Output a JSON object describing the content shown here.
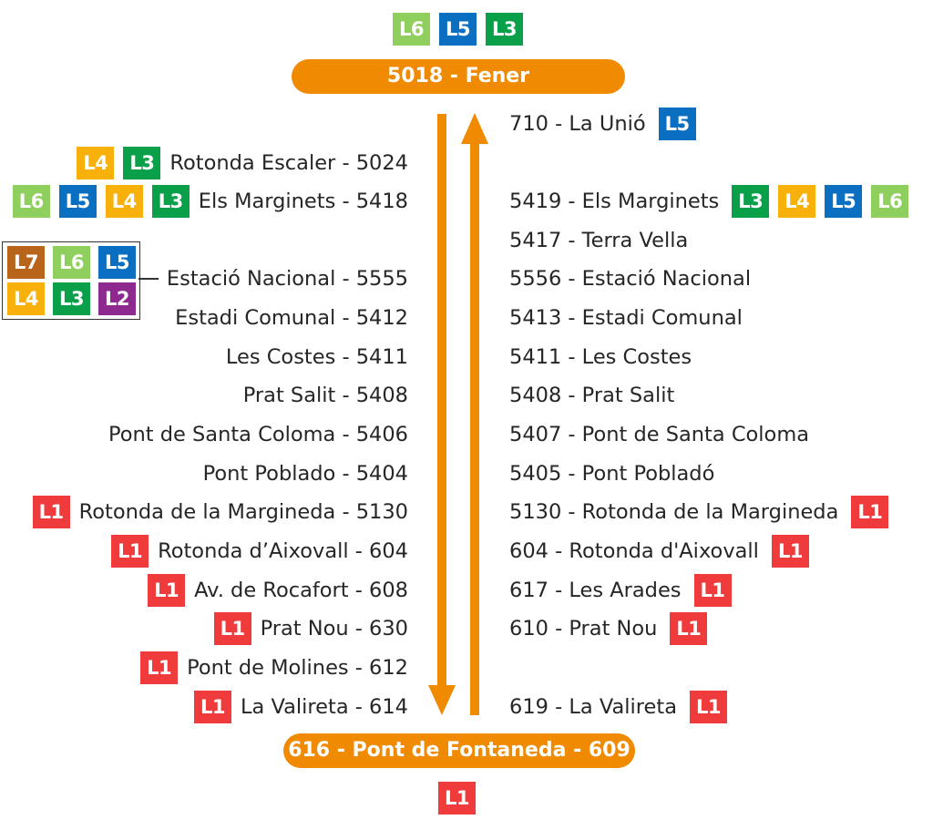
{
  "line_colors": {
    "L1": "#ef3b3b",
    "L2": "#8e2a8f",
    "L3": "#0aa04a",
    "L4": "#f7b10a",
    "L5": "#0a6fc0",
    "L6": "#8ecf5e",
    "L7": "#b8641a"
  },
  "arrow_color": "#f08a00",
  "top_terminal": {
    "label": "5018 - Fener",
    "lines": [
      "L6",
      "L5",
      "L3"
    ]
  },
  "bottom_terminal": {
    "label": "616 - Pont de Fontaneda - 609",
    "lines": [
      "L1"
    ]
  },
  "left_stops": [
    {
      "label": "Rotonda Escaler - 5024",
      "lines": [
        "L4",
        "L3"
      ]
    },
    {
      "label": "Els Marginets - 5418",
      "lines": [
        "L6",
        "L5",
        "L4",
        "L3"
      ]
    },
    {
      "label": "Estació Nacional - 5555",
      "lines": [
        "L7",
        "L6",
        "L5",
        "L4",
        "L3",
        "L2"
      ]
    },
    {
      "label": "Estadi Comunal - 5412",
      "lines": []
    },
    {
      "label": "Les Costes - 5411",
      "lines": []
    },
    {
      "label": "Prat Salit - 5408",
      "lines": []
    },
    {
      "label": "Pont de Santa Coloma - 5406",
      "lines": []
    },
    {
      "label": "Pont Poblado - 5404",
      "lines": []
    },
    {
      "label": "Rotonda de la Margineda - 5130",
      "lines": [
        "L1"
      ]
    },
    {
      "label": "Rotonda d’Aixovall - 604",
      "lines": [
        "L1"
      ]
    },
    {
      "label": "Av. de Rocafort - 608",
      "lines": [
        "L1"
      ]
    },
    {
      "label": "Prat Nou - 630",
      "lines": [
        "L1"
      ]
    },
    {
      "label": "Pont de Molines - 612",
      "lines": [
        "L1"
      ]
    },
    {
      "label": "La Valireta - 614",
      "lines": [
        "L1"
      ]
    }
  ],
  "right_stops": [
    {
      "label": "710 - La Unió",
      "lines": [
        "L5"
      ]
    },
    {
      "label": "5419 - Els Marginets",
      "lines": [
        "L3",
        "L4",
        "L5",
        "L6"
      ]
    },
    {
      "label": "5417 - Terra Vella",
      "lines": []
    },
    {
      "label": "5556 - Estació Nacional",
      "lines": []
    },
    {
      "label": "5413 - Estadi Comunal",
      "lines": []
    },
    {
      "label": "5411 - Les Costes",
      "lines": []
    },
    {
      "label": "5408 - Prat Salit",
      "lines": []
    },
    {
      "label": "5407 - Pont de Santa Coloma",
      "lines": []
    },
    {
      "label": "5405 - Pont Pobladó",
      "lines": []
    },
    {
      "label": "5130 - Rotonda de la Margineda",
      "lines": [
        "L1"
      ]
    },
    {
      "label": "604 - Rotonda d'Aixovall",
      "lines": [
        "L1"
      ]
    },
    {
      "label": "617 - Les Arades",
      "lines": [
        "L1"
      ]
    },
    {
      "label": "610 - Prat Nou",
      "lines": [
        "L1"
      ]
    },
    {
      "label": "619 - La Valireta",
      "lines": [
        "L1"
      ]
    }
  ]
}
